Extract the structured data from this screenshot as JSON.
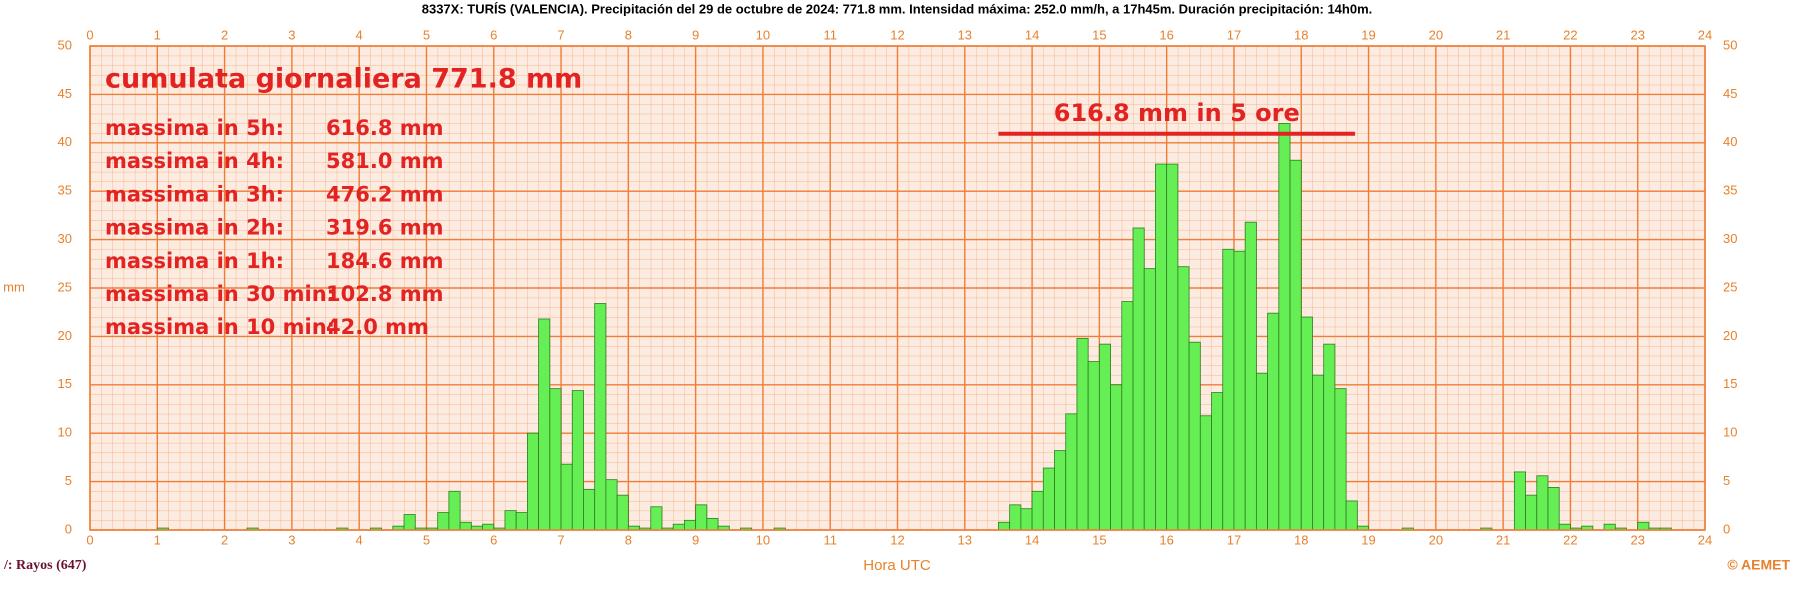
{
  "chart_data": {
    "type": "histogram",
    "title": "8337X:  TURÍS  (VALENCIA).  Precipitación  del  29  de  octubre  de  2024:  771.8  mm.  Intensidad  máxima:  252.0  mm/h,  a  17h45m.  Duración  precipitación:  14h0m.",
    "x_label": "Hora UTC",
    "y_label": "mm",
    "rays_label": "/: Rayos (647)",
    "credit": "© AEMET",
    "bins": [
      0,
      0.1667,
      0.3333,
      0.5,
      0.6667,
      0.8333,
      1,
      1.1667,
      1.3333,
      1.5,
      1.6667,
      1.8333,
      2,
      2.1667,
      2.3333,
      2.5,
      2.6667,
      2.8333,
      3,
      3.1667,
      3.3333,
      3.5,
      3.6667,
      3.8333,
      4,
      4.1667,
      4.3333,
      4.5,
      4.6667,
      4.8333,
      5,
      5.1667,
      5.3333,
      5.5,
      5.6667,
      5.8333,
      6,
      6.1667,
      6.3333,
      6.5,
      6.6667,
      6.8333,
      7,
      7.1667,
      7.3333,
      7.5,
      7.6667,
      7.8333,
      8,
      8.1667,
      8.3333,
      8.5,
      8.6667,
      8.8333,
      9,
      9.1667,
      9.3333,
      9.5,
      9.6667,
      9.8333,
      10,
      10.1667,
      10.3333,
      10.5,
      10.6667,
      10.8333,
      11,
      11.1667,
      11.3333,
      11.5,
      11.6667,
      11.8333,
      12,
      12.1667,
      12.3333,
      12.5,
      12.6667,
      12.8333,
      13,
      13.1667,
      13.3333,
      13.5,
      13.6667,
      13.8333,
      14,
      14.1667,
      14.3333,
      14.5,
      14.6667,
      14.8333,
      15,
      15.1667,
      15.3333,
      15.5,
      15.6667,
      15.8333,
      16,
      16.1667,
      16.3333,
      16.5,
      16.6667,
      16.8333,
      17,
      17.1667,
      17.3333,
      17.5,
      17.6667,
      17.8333,
      18,
      18.1667,
      18.3333,
      18.5,
      18.6667,
      18.8333,
      19,
      19.1667,
      19.3333,
      19.5,
      19.6667,
      19.8333,
      20,
      20.1667,
      20.3333,
      20.5,
      20.6667,
      20.8333,
      21,
      21.1667,
      21.3333,
      21.5,
      21.6667,
      21.8333,
      22,
      22.1667,
      22.3333,
      22.5,
      22.6667,
      22.8333,
      23,
      23.1667,
      23.3333,
      23.5,
      23.6667,
      23.8333,
      24
    ],
    "values": [
      0,
      0,
      0,
      0,
      0,
      0,
      0.2,
      0,
      0,
      0,
      0,
      0,
      0,
      0,
      0.2,
      0,
      0,
      0,
      0,
      0,
      0,
      0,
      0.2,
      0,
      0,
      0.2,
      0,
      0.4,
      1.6,
      0.2,
      0.2,
      1.8,
      4.0,
      0.8,
      0.4,
      0.6,
      0.2,
      2.0,
      1.8,
      10.0,
      21.8,
      14.6,
      6.8,
      14.4,
      4.2,
      23.4,
      5.2,
      3.6,
      0.4,
      0.2,
      2.4,
      0.2,
      0.6,
      1.0,
      2.6,
      1.2,
      0.4,
      0,
      0.2,
      0,
      0,
      0.2,
      0,
      0,
      0,
      0,
      0,
      0,
      0,
      0,
      0,
      0,
      0,
      0,
      0,
      0,
      0,
      0,
      0,
      0,
      0,
      0.8,
      2.6,
      2.2,
      4.0,
      6.4,
      8.2,
      12.0,
      19.8,
      17.4,
      19.2,
      15.0,
      23.6,
      31.2,
      27.0,
      37.8,
      37.8,
      27.2,
      19.4,
      11.8,
      14.2,
      29.0,
      28.8,
      31.8,
      16.2,
      22.4,
      42.0,
      38.2,
      22.0,
      16.0,
      19.2,
      14.6,
      3.0,
      0.4,
      0,
      0,
      0,
      0.2,
      0,
      0,
      0,
      0,
      0,
      0,
      0.2,
      0,
      0,
      6.0,
      3.6,
      5.6,
      4.4,
      0.6,
      0.2,
      0.4,
      0,
      0.6,
      0.2,
      0,
      0.8,
      0.2,
      0.2,
      0,
      0,
      0
    ],
    "color": "#66ee55",
    "edge_color": "#2d7d1f",
    "xlim": [
      0,
      24
    ],
    "xticks": [
      0,
      1,
      2,
      3,
      4,
      5,
      6,
      7,
      8,
      9,
      10,
      11,
      12,
      13,
      14,
      15,
      16,
      17,
      18,
      19,
      20,
      21,
      22,
      23,
      24
    ],
    "ylim": [
      0,
      50
    ],
    "yticks": [
      0,
      5,
      10,
      15,
      20,
      25,
      30,
      35,
      40,
      45,
      50
    ],
    "grid": true,
    "annotations": {
      "headline": "cumulata giornaliera 771.8 mm",
      "maxima": [
        {
          "label": "massima in 5h:",
          "value": "616.8 mm"
        },
        {
          "label": "massima in 4h:",
          "value": "581.0 mm"
        },
        {
          "label": "massima in 3h:",
          "value": "476.2 mm"
        },
        {
          "label": "massima in 2h:",
          "value": "319.6 mm"
        },
        {
          "label": "massima in 1h:",
          "value": "184.6 mm"
        },
        {
          "label": "massima in 30 min:",
          "value": "102.8 mm"
        },
        {
          "label": "massima in 10 min:",
          "value": "42.0 mm"
        }
      ],
      "window_text": "616.8 mm in 5 ore",
      "window": [
        13.5,
        18.8
      ],
      "window_level": 43
    }
  }
}
